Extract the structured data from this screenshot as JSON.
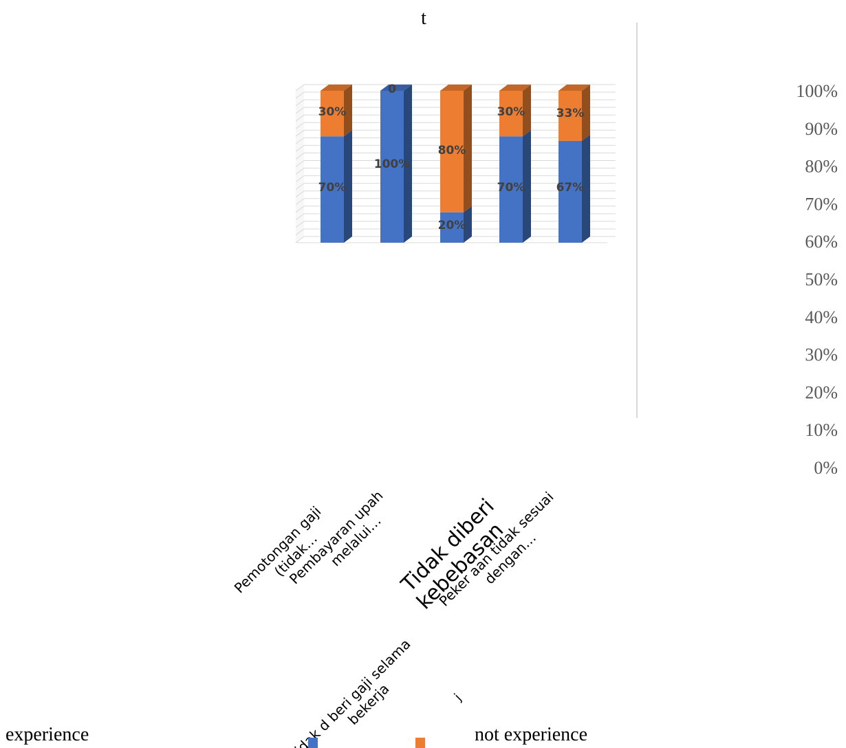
{
  "chart_data": {
    "type": "bar",
    "stacked": true,
    "three_d": true,
    "title": "t",
    "categories": [
      "Pemotongan gaji (tidak…",
      "Pembayaran upah melalui…",
      "Tidak d beri gaji selama bekerja",
      "Tidak diberi kebebasan",
      "Peker aan tidak sesuai dengan…"
    ],
    "series": [
      {
        "name": "experience",
        "color": "#4472C4",
        "values": [
          0.7,
          1.0,
          0.2,
          0.7,
          0.67
        ],
        "labels": [
          "70%",
          "100%",
          "20%",
          "70%",
          "67%"
        ]
      },
      {
        "name": "not experience",
        "color": "#ED7D31",
        "values": [
          0.3,
          0.0,
          0.8,
          0.3,
          0.33
        ],
        "labels": [
          "30%",
          "0",
          "80%",
          "30%",
          "33%"
        ]
      }
    ],
    "ylim": [
      0,
      1
    ],
    "yticks": [
      "0%",
      "10%",
      "20%",
      "30%",
      "40%",
      "50%",
      "60%",
      "70%",
      "80%",
      "90%",
      "100%"
    ],
    "grid": true,
    "legend": "bottom",
    "stray_text": "j"
  }
}
